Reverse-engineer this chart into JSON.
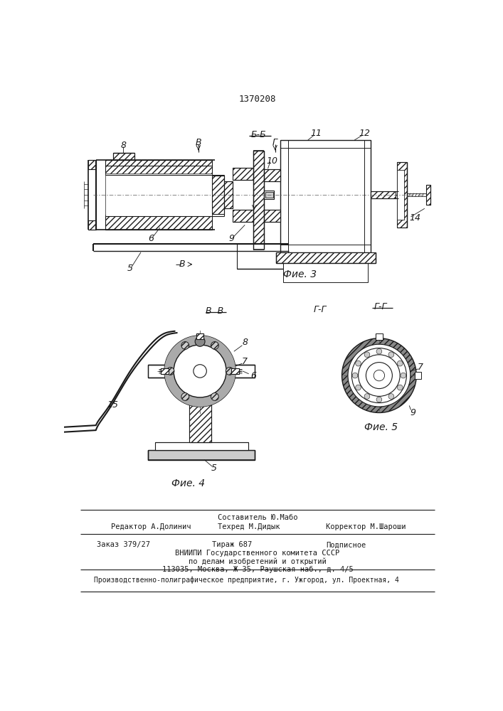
{
  "patent_number": "1370208",
  "bg_color": "#ffffff",
  "lc": "#1a1a1a",
  "fig3_label": "Фие. 3",
  "fig4_label": "Фие. 4",
  "fig5_label": "Фие. 5",
  "footer_sestavitel": "Составитель Ю.Мабо",
  "footer_redaktor": "Редактор А.Долинич",
  "footer_tehred": "Техред М.Дидык",
  "footer_korrektor": "Корректор М.Шароши",
  "footer_zakaz": "Заказ 379/27",
  "footer_tirazh": "Тираж 687",
  "footer_podpisnoe": "Подписное",
  "footer_vniip1": "ВНИИПИ Государственного комитета СССР",
  "footer_vniip2": "по делам изобретений и открытий",
  "footer_vniip3": "113035, Москва, Ж-35, Раушская наб., д. 4/5",
  "footer_bottom": "Производственно-полиграфическое предприятие, г. Ужгород, ул. Проектная, 4"
}
